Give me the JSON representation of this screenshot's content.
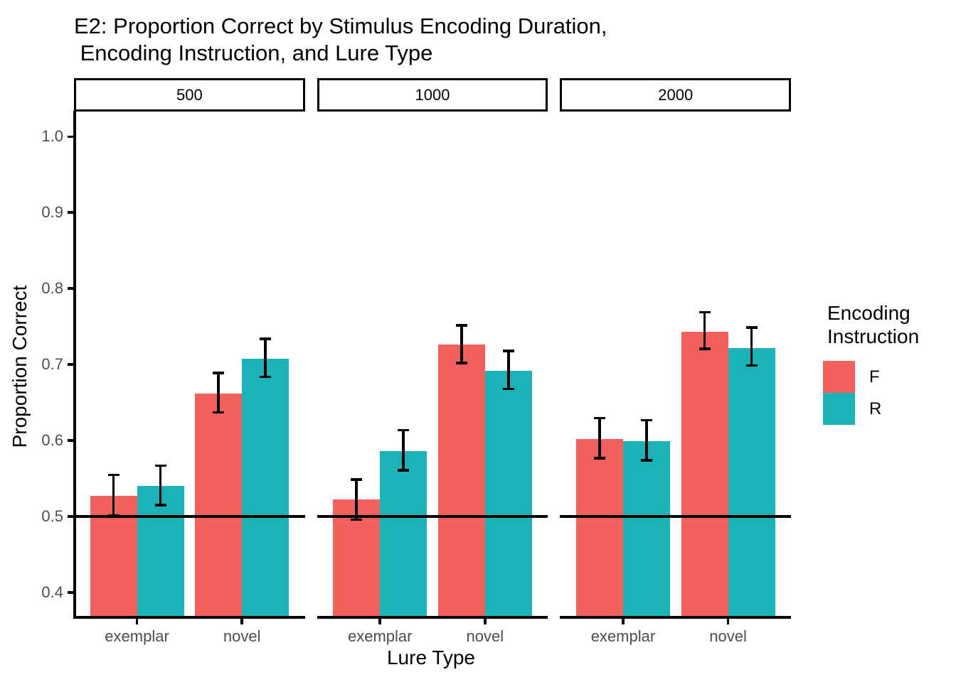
{
  "title": {
    "lines": [
      "E2: Proportion Correct by Stimulus Encoding Duration,",
      " Encoding Instruction, and Lure Type"
    ]
  },
  "chart_data": {
    "type": "bar",
    "title": "E2: Proportion Correct by Stimulus Encoding Duration,\n Encoding Instruction, and Lure Type",
    "xlabel": "Lure Type",
    "ylabel": "Proportion Correct",
    "categories": [
      "exemplar",
      "novel"
    ],
    "facet_labels": [
      "500",
      "1000",
      "2000"
    ],
    "yticks": [
      1.0,
      0.9,
      0.8,
      0.7,
      0.6,
      0.5,
      0.4
    ],
    "ylim": [
      0.369,
      1.033
    ],
    "reference_line": 0.5,
    "grid": false,
    "legend": {
      "title": "Encoding Instruction",
      "position": "right",
      "entries": [
        {
          "label": "F",
          "color": "#F4605C"
        },
        {
          "label": "R",
          "color": "#1AB4B8"
        }
      ]
    },
    "facets": [
      {
        "label": "500",
        "bars": [
          {
            "category": "exemplar",
            "series": "F",
            "value": 0.527,
            "ci_low": 0.502,
            "ci_high": 0.553
          },
          {
            "category": "exemplar",
            "series": "R",
            "value": 0.54,
            "ci_low": 0.516,
            "ci_high": 0.565
          },
          {
            "category": "novel",
            "series": "F",
            "value": 0.662,
            "ci_low": 0.638,
            "ci_high": 0.687
          },
          {
            "category": "novel",
            "series": "R",
            "value": 0.708,
            "ci_low": 0.685,
            "ci_high": 0.732
          }
        ]
      },
      {
        "label": "1000",
        "bars": [
          {
            "category": "exemplar",
            "series": "F",
            "value": 0.522,
            "ci_low": 0.497,
            "ci_high": 0.547
          },
          {
            "category": "exemplar",
            "series": "R",
            "value": 0.586,
            "ci_low": 0.562,
            "ci_high": 0.612
          },
          {
            "category": "novel",
            "series": "F",
            "value": 0.726,
            "ci_low": 0.703,
            "ci_high": 0.75
          },
          {
            "category": "novel",
            "series": "R",
            "value": 0.692,
            "ci_low": 0.669,
            "ci_high": 0.716
          }
        ]
      },
      {
        "label": "2000",
        "bars": [
          {
            "category": "exemplar",
            "series": "F",
            "value": 0.602,
            "ci_low": 0.578,
            "ci_high": 0.628
          },
          {
            "category": "exemplar",
            "series": "R",
            "value": 0.599,
            "ci_low": 0.575,
            "ci_high": 0.625
          },
          {
            "category": "novel",
            "series": "F",
            "value": 0.743,
            "ci_low": 0.722,
            "ci_high": 0.767
          },
          {
            "category": "novel",
            "series": "R",
            "value": 0.722,
            "ci_low": 0.7,
            "ci_high": 0.747
          }
        ]
      }
    ]
  }
}
